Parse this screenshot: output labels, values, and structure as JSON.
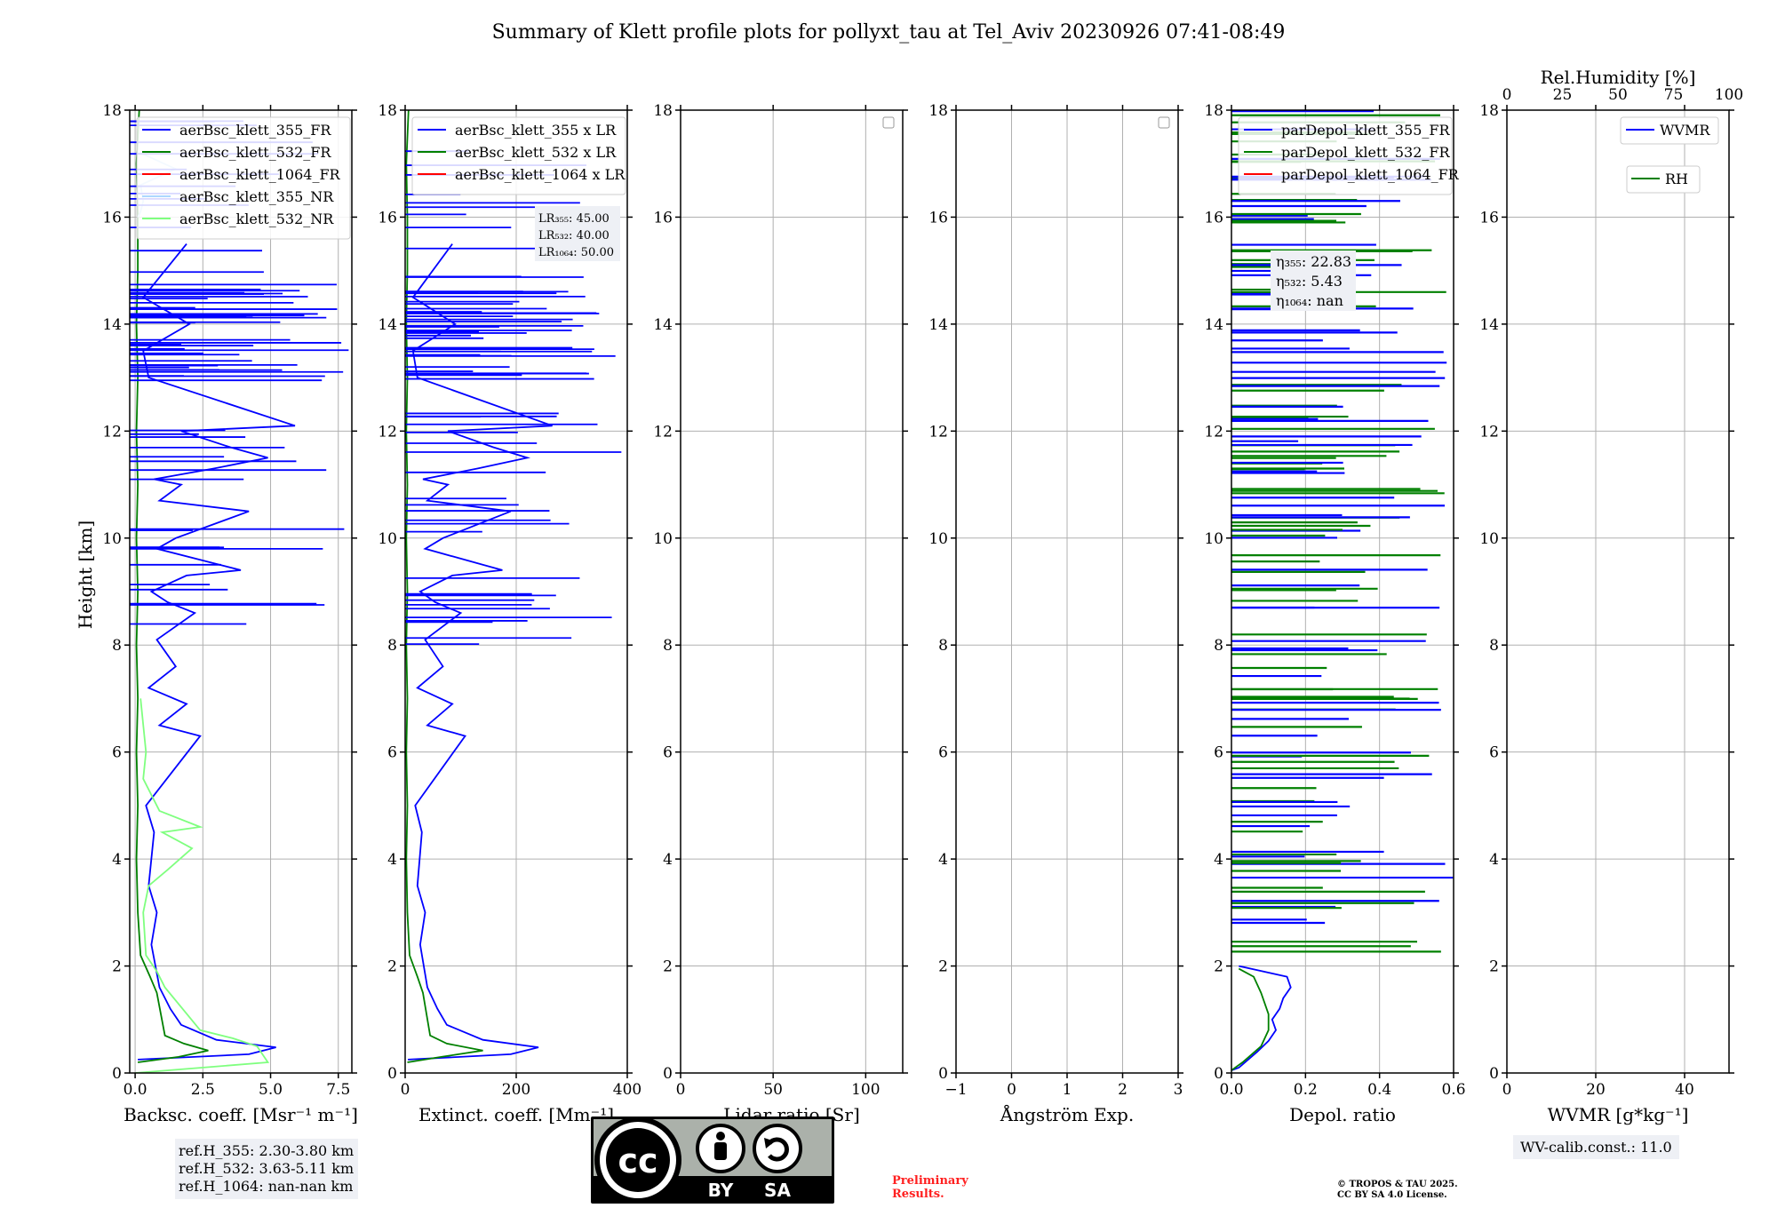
{
  "title": "Summary of Klett profile plots for pollyxt_tau at Tel_Aviv 20230926 07:41-08:49",
  "y_label": "Height [km]",
  "y_ticks": [
    "0",
    "2",
    "4",
    "6",
    "8",
    "10",
    "12",
    "14",
    "16",
    "18"
  ],
  "colors": {
    "blue": "#0000ff",
    "green": "#008000",
    "red": "#ff0000",
    "light_blue": "#add8ff",
    "light_green": "#7fff7f",
    "info_bg": "#eef0f5",
    "prelim": "#ff2020"
  },
  "chart_data": [
    {
      "type": "line",
      "xlabel": "Backsc. coeff. [Msr⁻¹ m⁻¹]",
      "xlim": [
        -0.2,
        8.0
      ],
      "x_ticks": [
        "0.0",
        "2.5",
        "5.0",
        "7.5"
      ],
      "x_tick_values": [
        0,
        2.5,
        5.0,
        7.5
      ],
      "ylim": [
        0,
        18
      ],
      "legend": [
        "aerBsc_klett_355_FR",
        "aerBsc_klett_532_FR",
        "aerBsc_klett_1064_FR",
        "aerBsc_klett_355_NR",
        "aerBsc_klett_532_NR"
      ],
      "series": [
        {
          "name": "aerBsc_klett_355_FR",
          "color": "blue",
          "x": [
            0.1,
            4.2,
            5.2,
            3.0,
            1.7,
            1.3,
            0.9,
            0.6,
            0.8,
            0.5,
            0.7,
            0.4,
            2.4,
            0.9,
            1.9,
            0.5,
            1.5,
            0.8,
            2.2,
            1.2,
            0.6,
            1.9,
            3.9,
            0.8,
            1.5,
            4.2,
            0.9,
            1.7,
            0.7,
            2.9,
            4.9,
            3.5,
            1.7,
            5.9,
            0.5,
            0.3,
            2.0,
            0.3,
            1.9
          ],
          "y": [
            0.25,
            0.35,
            0.48,
            0.62,
            0.9,
            1.2,
            1.6,
            2.4,
            3.0,
            3.5,
            4.5,
            5.0,
            6.3,
            6.5,
            6.9,
            7.2,
            7.6,
            8.1,
            8.6,
            8.8,
            9.0,
            9.3,
            9.4,
            9.8,
            10.0,
            10.5,
            10.7,
            11.0,
            11.1,
            11.3,
            11.5,
            11.7,
            12.0,
            12.1,
            13.0,
            13.5,
            14.0,
            14.5,
            15.5
          ]
        },
        {
          "name": "aerBsc_klett_532_FR",
          "color": "green",
          "x": [
            0.1,
            1.6,
            2.7,
            1.8,
            1.1,
            0.8,
            0.55,
            0.2,
            0.1,
            0.05,
            0.1,
            0.05,
            0.1,
            0.05,
            0.1,
            0.05,
            0.1,
            0.05,
            0.1,
            0.05,
            0.1,
            0.1,
            0.05,
            0.15
          ],
          "y": [
            0.2,
            0.3,
            0.42,
            0.55,
            0.7,
            1.5,
            1.8,
            2.2,
            3.0,
            4.0,
            5.0,
            6.0,
            7.0,
            8.0,
            9.0,
            10.0,
            11.0,
            12.0,
            13.0,
            14.0,
            15.0,
            16.0,
            17.0,
            18.0
          ]
        },
        {
          "name": "aerBsc_klett_355_NR",
          "color": "light_blue",
          "x": [
            0.1,
            0.2,
            0.3,
            0.2,
            1.5,
            0.2
          ],
          "y": [
            16.0,
            16.1,
            16.3,
            16.6,
            16.9,
            17.2
          ]
        },
        {
          "name": "aerBsc_klett_532_NR",
          "color": "light_green",
          "x": [
            0.0,
            4.9,
            4.5,
            3.6,
            2.4,
            1.1,
            0.8,
            0.4,
            0.3,
            0.5,
            1.2,
            2.1,
            1.0,
            2.4,
            0.9,
            0.3,
            0.4,
            0.2
          ],
          "y": [
            0.0,
            0.2,
            0.5,
            0.65,
            0.8,
            1.6,
            1.9,
            2.2,
            3.0,
            3.5,
            3.8,
            4.2,
            4.5,
            4.6,
            4.9,
            5.5,
            6.0,
            7.0
          ]
        }
      ],
      "annotation": [
        "ref.H_355: 2.30-3.80 km",
        "ref.H_532: 3.63-5.11 km",
        "ref.H_1064: nan-nan km"
      ]
    },
    {
      "type": "line",
      "xlabel": "Extinct. coeff. [Mm⁻¹]",
      "xlim": [
        0,
        400
      ],
      "x_ticks": [
        "0",
        "200",
        "400"
      ],
      "x_tick_values": [
        0,
        200,
        400
      ],
      "ylim": [
        0,
        18
      ],
      "legend": [
        "aerBsc_klett_355 x LR",
        "aerBsc_klett_532 x LR",
        "aerBsc_klett_1064 x LR"
      ],
      "series": [
        {
          "name": "aerBsc_klett_355 x LR",
          "color": "blue",
          "x": [
            5,
            190,
            240,
            140,
            75,
            58,
            40,
            27,
            36,
            22,
            30,
            18,
            108,
            40,
            85,
            22,
            68,
            36,
            100,
            54,
            27,
            85,
            175,
            36,
            68,
            190,
            40,
            77,
            32,
            130,
            220,
            158,
            77,
            265,
            22,
            14,
            90,
            14,
            85
          ],
          "y": [
            0.25,
            0.35,
            0.48,
            0.62,
            0.9,
            1.2,
            1.6,
            2.4,
            3.0,
            3.5,
            4.5,
            5.0,
            6.3,
            6.5,
            6.9,
            7.2,
            7.6,
            8.1,
            8.6,
            8.8,
            9.0,
            9.3,
            9.4,
            9.8,
            10.0,
            10.5,
            10.7,
            11.0,
            11.1,
            11.3,
            11.5,
            11.7,
            12.0,
            12.1,
            13.0,
            13.5,
            14.0,
            14.5,
            15.5
          ]
        },
        {
          "name": "aerBsc_klett_532 x LR",
          "color": "green",
          "x": [
            4,
            65,
            140,
            75,
            45,
            32,
            22,
            8,
            4,
            2,
            4,
            2,
            4,
            2,
            4,
            2,
            4,
            2,
            4,
            2,
            4,
            4,
            2,
            6
          ],
          "y": [
            0.2,
            0.3,
            0.42,
            0.55,
            0.7,
            1.5,
            1.8,
            2.2,
            3.0,
            4.0,
            5.0,
            6.0,
            7.0,
            8.0,
            9.0,
            10.0,
            11.0,
            12.0,
            13.0,
            14.0,
            15.0,
            16.0,
            17.0,
            18.0
          ]
        }
      ],
      "annotation": [
        "LR₃₅₅: 45.00",
        "LR₅₃₂: 40.00",
        "LR₁₀₆₄: 50.00"
      ]
    },
    {
      "type": "line",
      "xlabel": "Lidar ratio [Sr]",
      "xlim": [
        0,
        120
      ],
      "x_ticks": [
        "0",
        "50",
        "100"
      ],
      "x_tick_values": [
        0,
        50,
        100
      ],
      "ylim": [
        0,
        18
      ],
      "series": []
    },
    {
      "type": "line",
      "xlabel": "Ångström Exp.",
      "xlim": [
        -1,
        3
      ],
      "x_ticks": [
        "−1",
        "0",
        "1",
        "2",
        "3"
      ],
      "x_tick_values": [
        -1,
        0,
        1,
        2,
        3
      ],
      "ylim": [
        0,
        18
      ],
      "series": []
    },
    {
      "type": "line",
      "xlabel": "Depol. ratio",
      "xlim": [
        0,
        0.6
      ],
      "x_ticks": [
        "0.0",
        "0.2",
        "0.4",
        "0.6"
      ],
      "x_tick_values": [
        0,
        0.2,
        0.4,
        0.6
      ],
      "ylim": [
        0,
        18
      ],
      "legend": [
        "parDepol_klett_355_FR",
        "parDepol_klett_532_FR",
        "parDepol_klett_1064_FR"
      ],
      "series": [
        {
          "name": "parDepol_klett_355_FR",
          "color": "blue",
          "x": [
            0.0,
            0.02,
            0.07,
            0.1,
            0.12,
            0.11,
            0.13,
            0.14,
            0.16,
            0.15,
            0.02
          ],
          "y": [
            0.05,
            0.1,
            0.4,
            0.6,
            0.8,
            1.0,
            1.2,
            1.4,
            1.6,
            1.8,
            2.0
          ]
        },
        {
          "name": "parDepol_klett_532_FR",
          "color": "green",
          "x": [
            0.0,
            0.03,
            0.08,
            0.1,
            0.1,
            0.08,
            0.06,
            0.02
          ],
          "y": [
            0.05,
            0.2,
            0.5,
            0.8,
            1.1,
            1.5,
            1.8,
            1.95
          ]
        }
      ],
      "annotation": [
        "η₃₅₅: 22.83",
        "η₅₃₂: 5.43",
        "η₁₀₆₄: nan"
      ]
    },
    {
      "type": "line",
      "xlabel": "WVMR [g*kg⁻¹]",
      "xlim": [
        0,
        50
      ],
      "x_ticks": [
        "0",
        "20",
        "40"
      ],
      "x_tick_values": [
        0,
        20,
        40
      ],
      "top_xlabel": "Rel.Humidity [%]",
      "top_xlim": [
        0,
        100
      ],
      "top_x_ticks": [
        "0",
        "25",
        "50",
        "75",
        "100"
      ],
      "top_x_tick_values": [
        0,
        25,
        50,
        75,
        100
      ],
      "ylim": [
        0,
        18
      ],
      "legend": [
        "WVMR",
        "RH"
      ],
      "series": [],
      "annotation": [
        "WV-calib.const.: 11.0"
      ]
    }
  ],
  "footer": {
    "license_badge": {
      "cc": "cc",
      "by": "BY",
      "sa": "SA"
    },
    "preliminary": [
      "Preliminary",
      "Results."
    ],
    "copyright": [
      "© TROPOS & TAU 2025.",
      "CC BY SA 4.0 License."
    ]
  }
}
